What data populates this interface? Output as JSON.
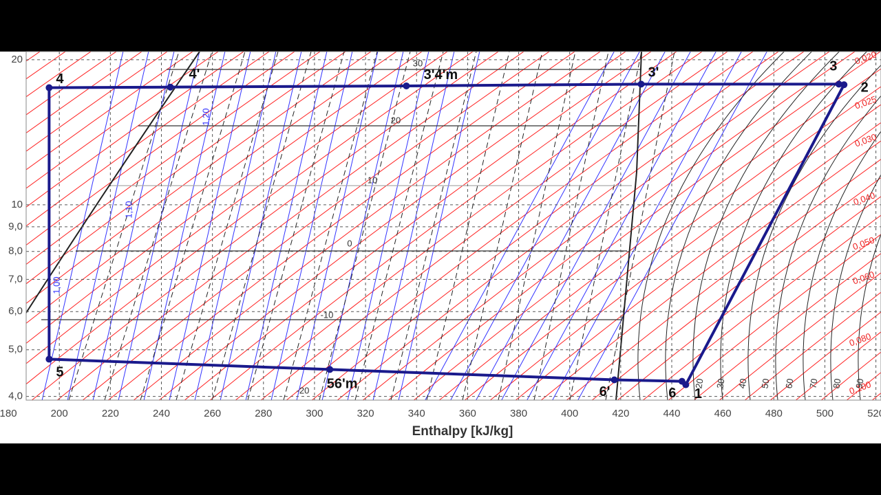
{
  "chart_data": {
    "type": "line",
    "xlabel": "Enthalpy [kJ/kg]",
    "xlim": [
      187,
      522
    ],
    "ylim": [
      3.93,
      20.8
    ],
    "log_y": true,
    "grid": true,
    "xticks": [
      180,
      200,
      220,
      240,
      260,
      280,
      300,
      320,
      340,
      360,
      380,
      400,
      420,
      440,
      460,
      480,
      500,
      520
    ],
    "yticks": [
      {
        "value": 4,
        "label": "4,0"
      },
      {
        "value": 5,
        "label": "5,0"
      },
      {
        "value": 6,
        "label": "6,0"
      },
      {
        "value": 7,
        "label": "7,0"
      },
      {
        "value": 8,
        "label": "8,0"
      },
      {
        "value": 9,
        "label": "9,0"
      },
      10,
      20
    ],
    "series": [
      {
        "color": "#1a1a8c",
        "x": [
          196,
          196,
          306,
          417.5,
          444,
          445.5,
          507.5,
          505.5,
          428,
          336,
          243.5
        ],
        "y": [
          17.5,
          4.78,
          4.55,
          4.33,
          4.3,
          4.23,
          17.75,
          17.8,
          17.8,
          17.65,
          17.55
        ],
        "point_labels": [
          "4",
          "5",
          "56'm",
          "6'",
          "6",
          "1",
          "2",
          "3",
          "3'",
          "3'4'm",
          "4'"
        ]
      }
    ],
    "annotations": [
      "30",
      "20",
      "10",
      "0",
      "-10",
      "-20",
      "0,020",
      "0,025",
      "0,030",
      "0,040",
      "0,050",
      "0,060",
      "0,080",
      "0,100",
      "1,00",
      "1,10",
      "1,20",
      "20",
      "30",
      "40",
      "50",
      "60",
      "70",
      "80",
      "90"
    ]
  }
}
